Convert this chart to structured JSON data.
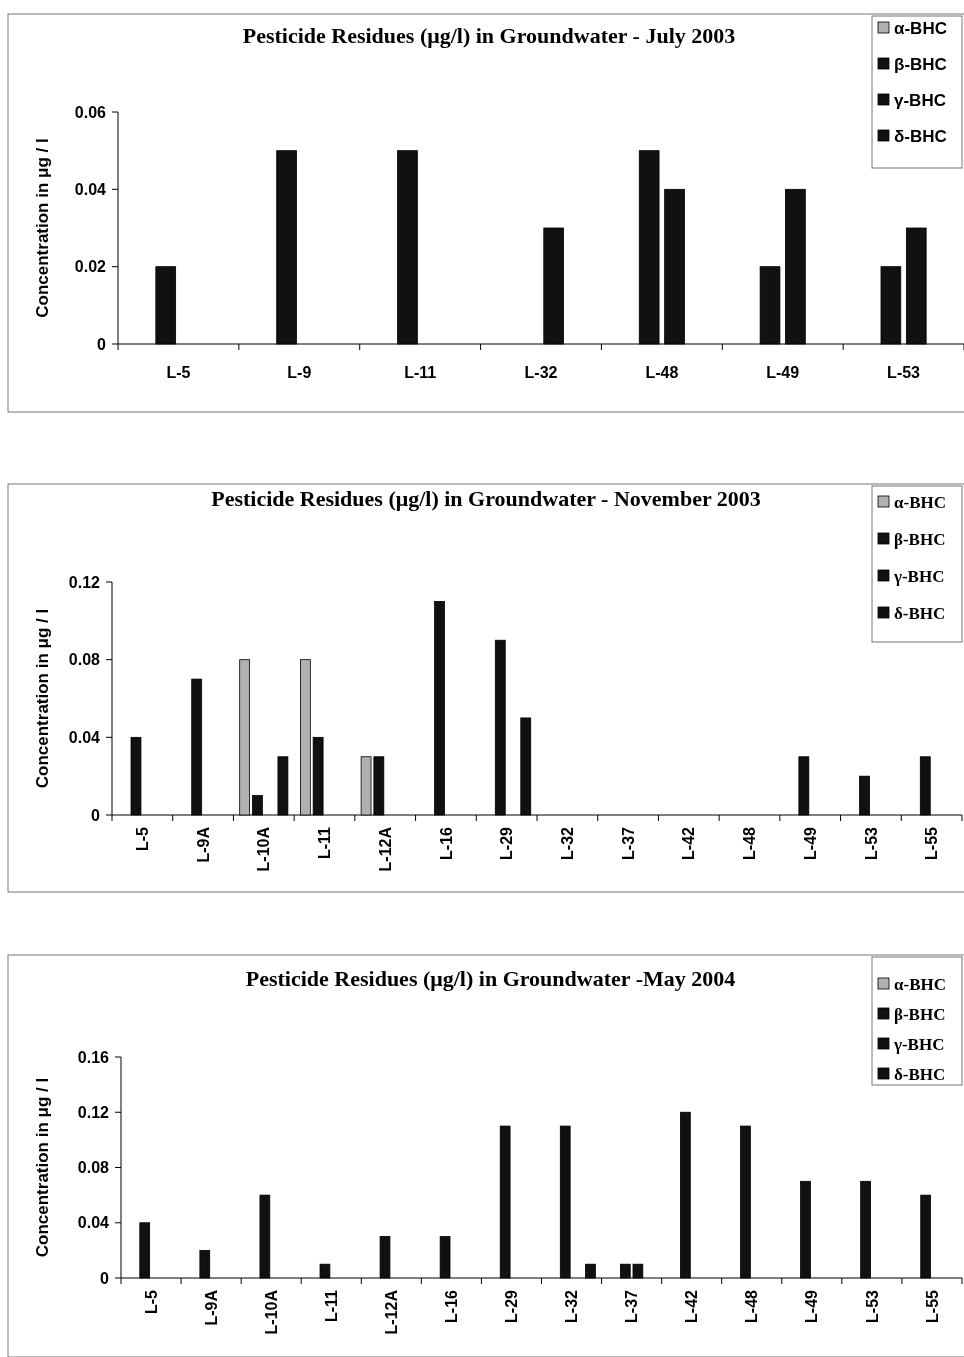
{
  "chart_data": [
    {
      "type": "bar",
      "title": "Pesticide Residues (μg/l) in Groundwater - July 2003",
      "ylabel": "Concentration in  μg / l",
      "categories": [
        "L-5",
        "L-9",
        "L-11",
        "L-32",
        "L-48",
        "L-49",
        "L-53"
      ],
      "ylim": [
        0,
        0.06
      ],
      "yticks": [
        0,
        0.02,
        0.04,
        0.06
      ],
      "grid": false,
      "legend": "top right",
      "series": [
        {
          "name": "α-BHC",
          "color": "#b0b0b0",
          "values": [
            null,
            null,
            null,
            null,
            null,
            null,
            null
          ]
        },
        {
          "name": "β-BHC",
          "color": "#111111",
          "values": [
            0.02,
            0.05,
            0.05,
            null,
            0.05,
            0.02,
            0.02
          ]
        },
        {
          "name": "γ-BHC",
          "color": "#111111",
          "values": [
            null,
            null,
            null,
            0.03,
            0.04,
            0.04,
            0.03
          ]
        },
        {
          "name": "δ-BHC",
          "color": "#111111",
          "values": [
            null,
            null,
            null,
            null,
            null,
            null,
            null
          ]
        }
      ]
    },
    {
      "type": "bar",
      "title": "Pesticide Residues (μg/l) in Groundwater - November 2003",
      "ylabel": "Concentration in  μg / l",
      "categories": [
        "L-5",
        "L-9A",
        "L-10A",
        "L-11",
        "L-12A",
        "L-16",
        "L-29",
        "L-32",
        "L-37",
        "L-42",
        "L-48",
        "L-49",
        "L-53",
        "L-55"
      ],
      "ylim": [
        0,
        0.12
      ],
      "yticks": [
        0,
        0.04,
        0.08,
        0.12
      ],
      "grid": false,
      "legend": "top right",
      "series": [
        {
          "name": "α-BHC",
          "color": "#b0b0b0",
          "values": [
            null,
            null,
            0.08,
            0.08,
            0.03,
            null,
            null,
            null,
            null,
            null,
            null,
            null,
            null,
            null
          ]
        },
        {
          "name": "β-BHC",
          "color": "#111111",
          "values": [
            0.04,
            0.07,
            0.01,
            0.04,
            0.03,
            0.11,
            0.09,
            null,
            null,
            null,
            null,
            0.03,
            0.02,
            0.03
          ]
        },
        {
          "name": "γ-BHC",
          "color": "#111111",
          "values": [
            null,
            null,
            null,
            null,
            null,
            null,
            null,
            null,
            null,
            null,
            null,
            null,
            null,
            null
          ]
        },
        {
          "name": "δ-BHC",
          "color": "#111111",
          "values": [
            null,
            null,
            0.03,
            null,
            null,
            null,
            0.05,
            null,
            null,
            null,
            null,
            null,
            null,
            null
          ]
        }
      ]
    },
    {
      "type": "bar",
      "title": "Pesticide Residues (μg/l) in Groundwater -May 2004",
      "ylabel": "Concentration in  μg / l",
      "categories": [
        "L-5",
        "L-9A",
        "L-10A",
        "L-11",
        "L-12A",
        "L-16",
        "L-29",
        "L-32",
        "L-37",
        "L-42",
        "L-48",
        "L-49",
        "L-53",
        "L-55"
      ],
      "ylim": [
        0,
        0.16
      ],
      "yticks": [
        0,
        0.04,
        0.08,
        0.12,
        0.16
      ],
      "grid": false,
      "legend": "top right",
      "series": [
        {
          "name": "α-BHC",
          "color": "#b0b0b0",
          "values": [
            null,
            null,
            null,
            null,
            null,
            null,
            null,
            null,
            null,
            null,
            null,
            null,
            null,
            null
          ]
        },
        {
          "name": "β-BHC",
          "color": "#111111",
          "values": [
            0.04,
            0.02,
            0.06,
            0.01,
            0.03,
            0.03,
            0.11,
            0.11,
            0.01,
            0.12,
            0.11,
            0.07,
            0.07,
            0.06
          ]
        },
        {
          "name": "γ-BHC",
          "color": "#111111",
          "values": [
            null,
            null,
            null,
            null,
            null,
            null,
            null,
            null,
            0.01,
            null,
            null,
            null,
            null,
            null
          ]
        },
        {
          "name": "δ-BHC",
          "color": "#111111",
          "values": [
            null,
            null,
            null,
            null,
            null,
            null,
            null,
            0.01,
            null,
            null,
            null,
            null,
            null,
            null
          ]
        }
      ]
    }
  ]
}
